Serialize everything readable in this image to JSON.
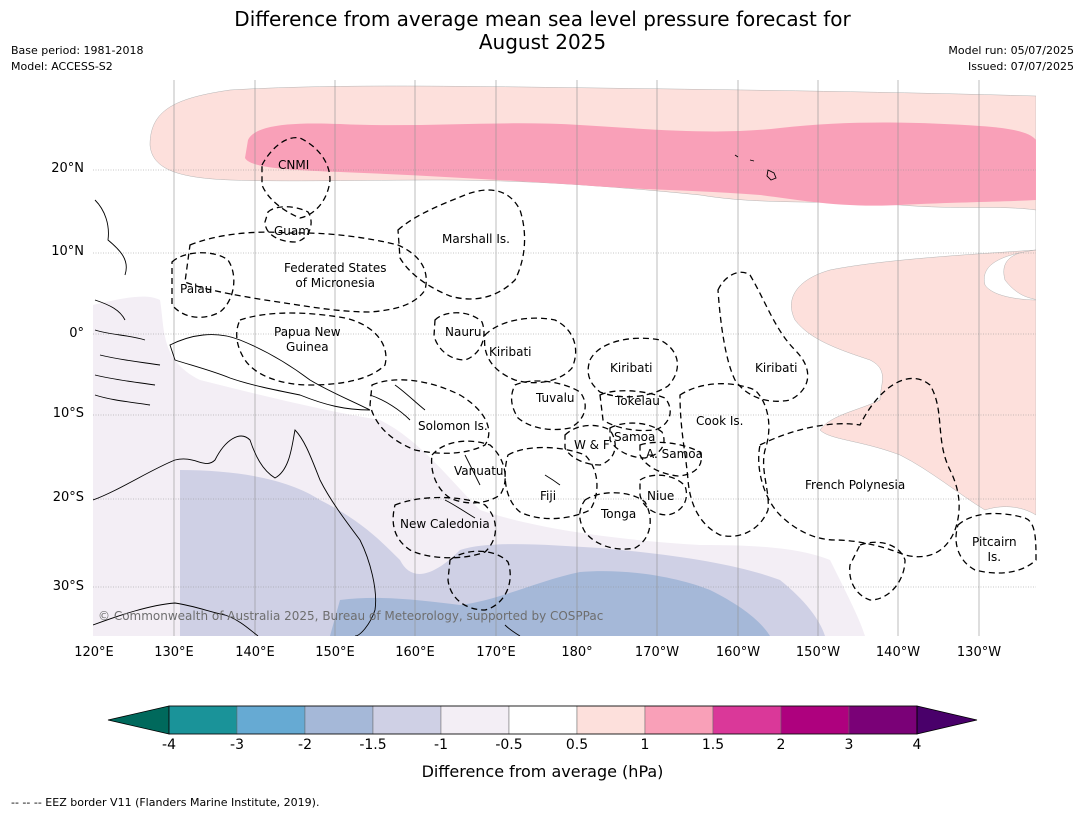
{
  "title_line1": "Difference from average mean sea level pressure forecast for",
  "title_line2": "August 2025",
  "meta_left": [
    "Base period: 1981-2018",
    "Model: ACCESS-S2"
  ],
  "meta_right": [
    "Model run: 05/07/2025",
    "Issued: 07/07/2025"
  ],
  "lat_labels": [
    "20°N",
    "10°N",
    "0°",
    "10°S",
    "20°S",
    "30°S"
  ],
  "lon_labels": [
    "120°E",
    "130°E",
    "140°E",
    "150°E",
    "160°E",
    "170°E",
    "180°",
    "170°W",
    "160°W",
    "150°W",
    "140°W",
    "130°W"
  ],
  "countries": [
    {
      "name": "CNMI"
    },
    {
      "name": "Guam"
    },
    {
      "name": "Marshall Is."
    },
    {
      "name": "Federated States\nof Micronesia"
    },
    {
      "name": "Palau"
    },
    {
      "name": "Nauru"
    },
    {
      "name": "Papua New\nGuinea"
    },
    {
      "name": "Kiribati"
    },
    {
      "name": "Kiribati"
    },
    {
      "name": "Kiribati"
    },
    {
      "name": "Tuvalu"
    },
    {
      "name": "Tokelau"
    },
    {
      "name": "Solomon Is."
    },
    {
      "name": "Samoa"
    },
    {
      "name": "W & F"
    },
    {
      "name": "A. Samoa"
    },
    {
      "name": "Cook Is."
    },
    {
      "name": "Vanuatu"
    },
    {
      "name": "Fiji"
    },
    {
      "name": "Niue"
    },
    {
      "name": "Tonga"
    },
    {
      "name": "New Caledonia"
    },
    {
      "name": "French Polynesia"
    },
    {
      "name": "Pitcairn\nIs."
    }
  ],
  "copyright": "© Commonwealth of Australia 2025, Bureau of Meteorology, supported by COSPPac",
  "colorbar": {
    "ticks": [
      "-4",
      "-3",
      "-2",
      "-1.5",
      "-1",
      "-0.5",
      "0.5",
      "1",
      "1.5",
      "2",
      "3",
      "4"
    ],
    "colors": [
      "#1a9399",
      "#66aad3",
      "#a5b8d8",
      "#cfd0e5",
      "#f3eef5",
      "#ffffff",
      "#fde0dc",
      "#f9a0b8",
      "#da3899",
      "#ae017e",
      "#7a0177"
    ],
    "under_color": "#00695c",
    "over_color": "#49006a",
    "title": "Difference from average (hPa)"
  },
  "footer": "--  --  -- EEZ border V11 (Flanders Marine Institute, 2019)."
}
